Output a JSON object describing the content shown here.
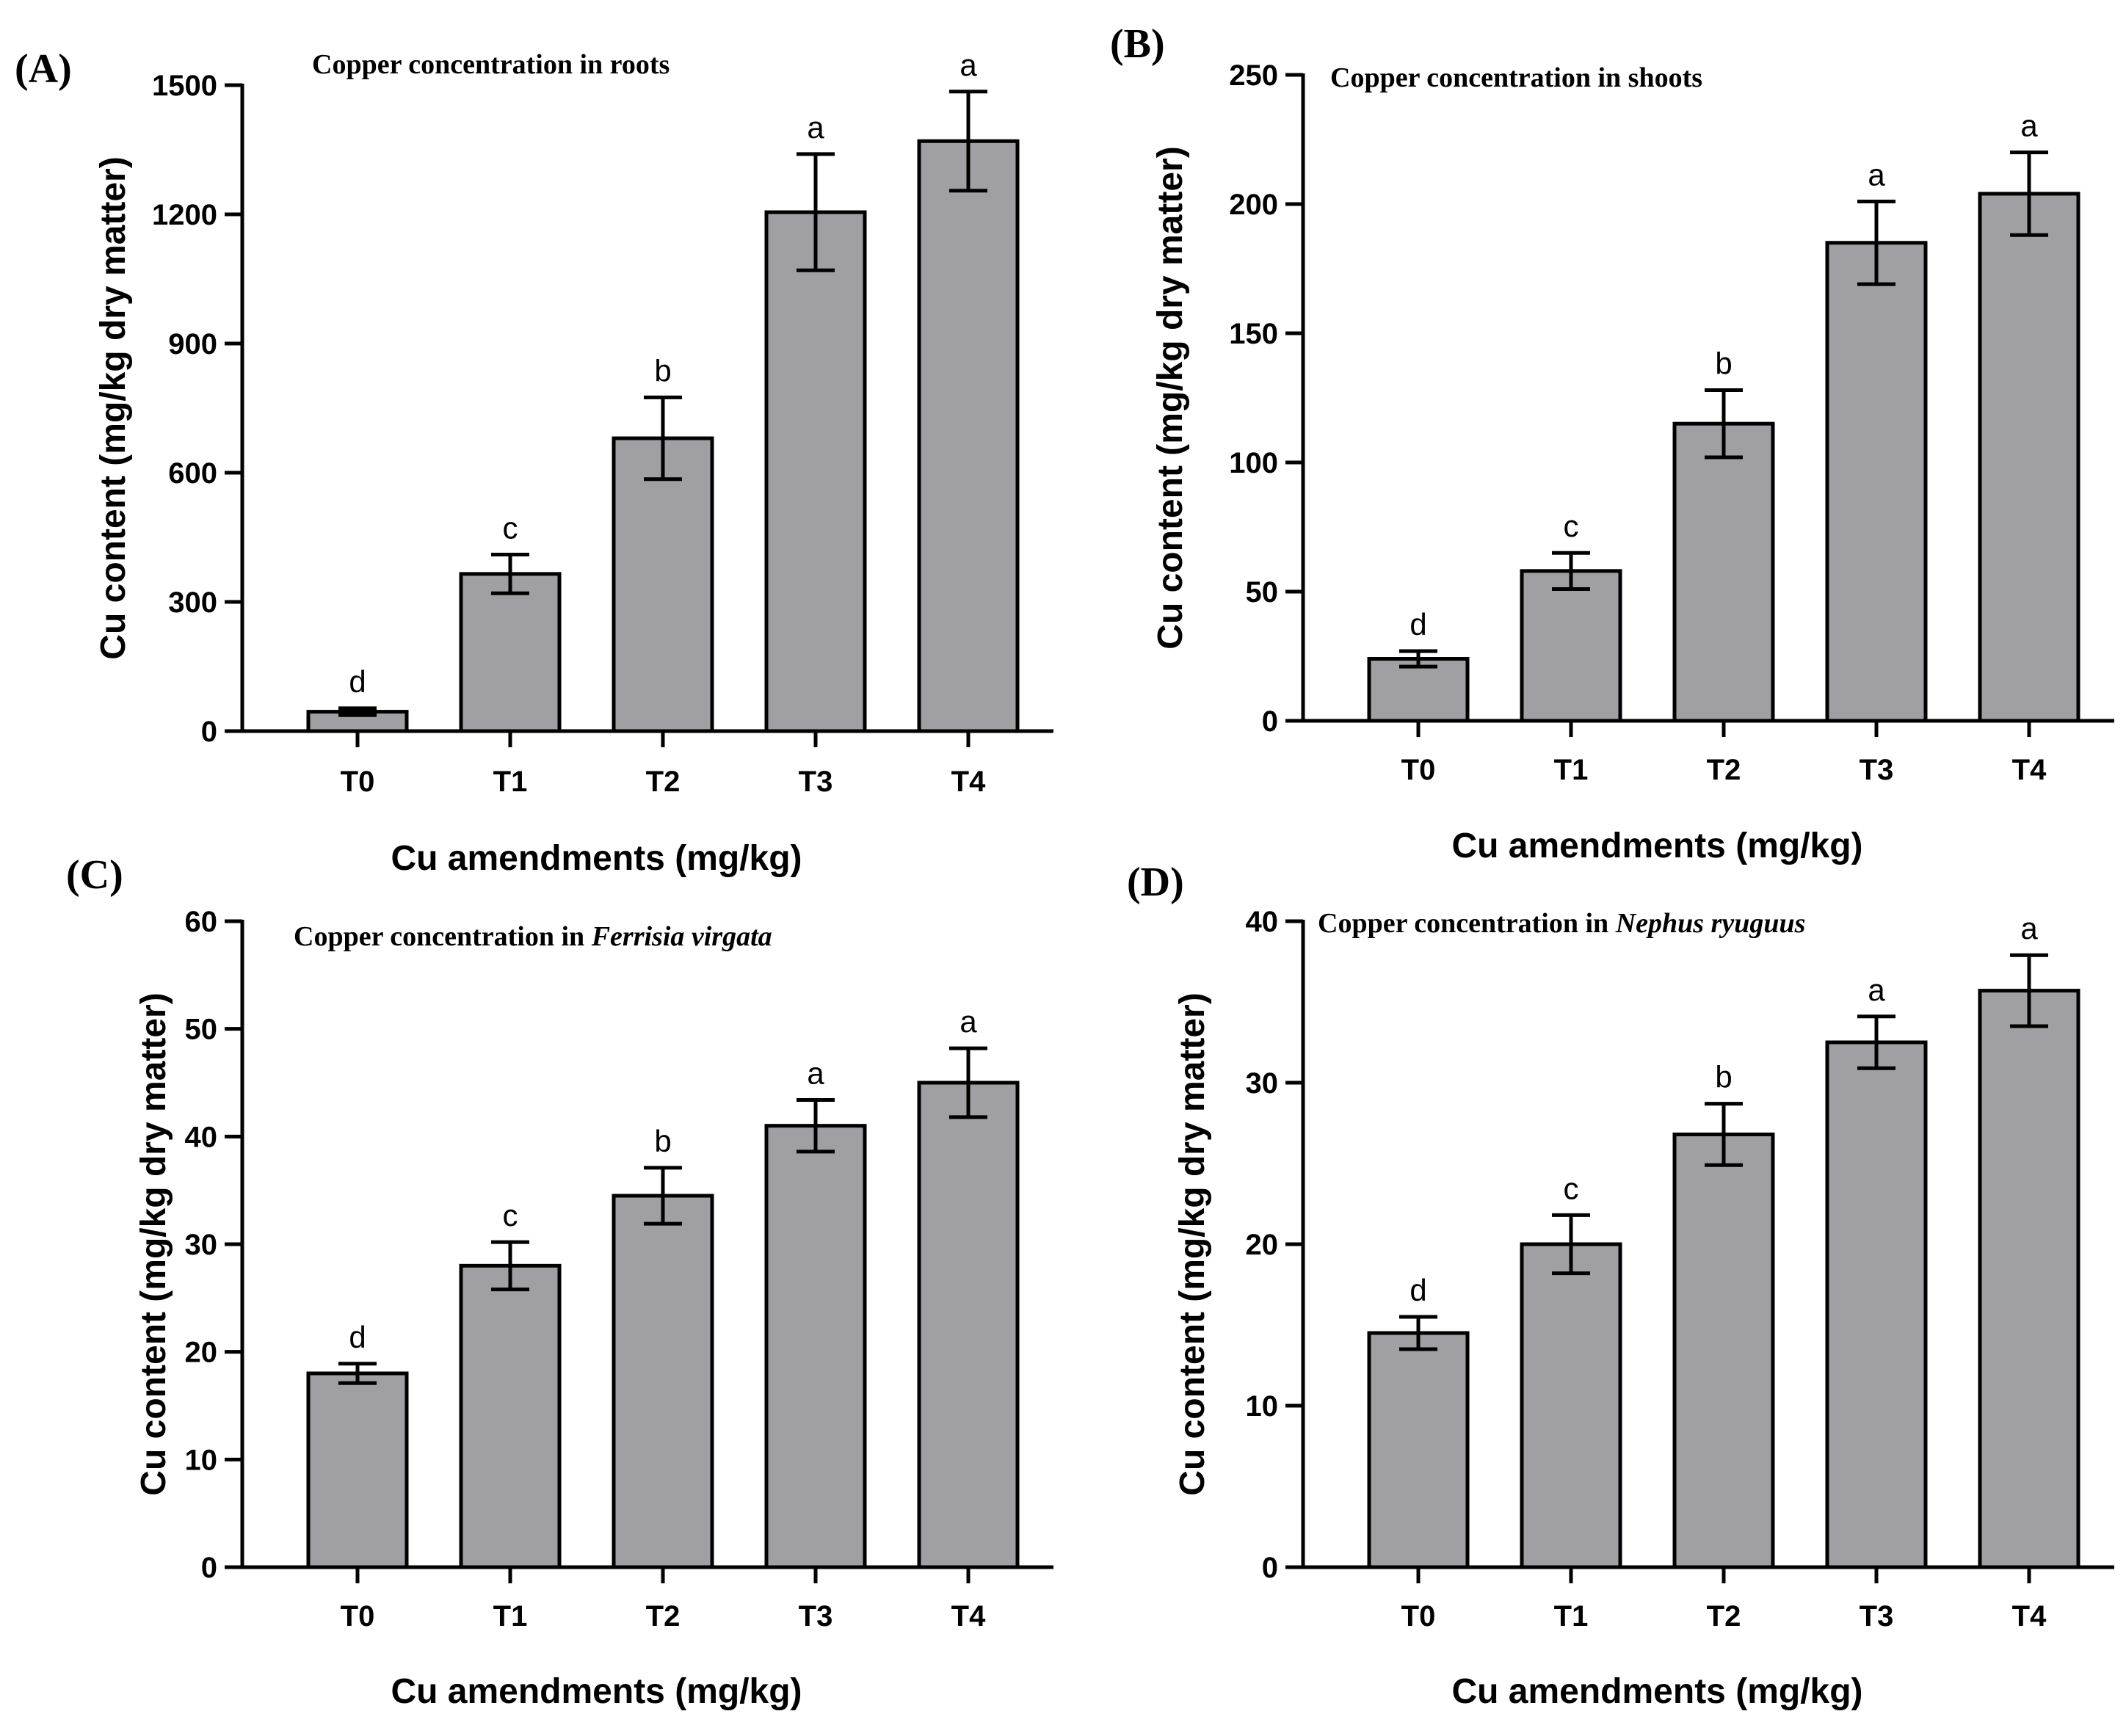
{
  "figure": {
    "colors": {
      "bar_fill": "#a0a0a4",
      "stroke": "#000000",
      "background": "#ffffff"
    }
  },
  "chart_data": [
    {
      "type": "bar",
      "panel": "(A)",
      "title_prefix": "Copper concentration in roots",
      "title_italic": "",
      "categories": [
        "T0",
        "T1",
        "T2",
        "T3",
        "T4"
      ],
      "values": [
        45,
        365,
        680,
        1205,
        1370
      ],
      "errors": [
        8,
        45,
        95,
        135,
        115
      ],
      "letters": [
        "d",
        "c",
        "b",
        "a",
        "a"
      ],
      "ylim": [
        0,
        1500
      ],
      "yticks": [
        0,
        300,
        600,
        900,
        1200,
        1500
      ],
      "xlabel": "Cu amendments (mg/kg)",
      "ylabel": "Cu content (mg/kg dry matter)"
    },
    {
      "type": "bar",
      "panel": "(B)",
      "title_prefix": "Copper concentration in shoots",
      "title_italic": "",
      "categories": [
        "T0",
        "T1",
        "T2",
        "T3",
        "T4"
      ],
      "values": [
        24,
        58,
        115,
        185,
        204
      ],
      "errors": [
        3,
        7,
        13,
        16,
        16
      ],
      "letters": [
        "d",
        "c",
        "b",
        "a",
        "a"
      ],
      "ylim": [
        0,
        250
      ],
      "yticks": [
        0,
        50,
        100,
        150,
        200,
        250
      ],
      "xlabel": "Cu amendments (mg/kg)",
      "ylabel": "Cu content (mg/kg dry matter)"
    },
    {
      "type": "bar",
      "panel": "(C)",
      "title_prefix": "Copper concentration in ",
      "title_italic": "Ferrisia virgata",
      "categories": [
        "T0",
        "T1",
        "T2",
        "T3",
        "T4"
      ],
      "values": [
        18,
        28,
        34.5,
        41,
        45
      ],
      "errors": [
        0.9,
        2.2,
        2.6,
        2.4,
        3.2
      ],
      "letters": [
        "d",
        "c",
        "b",
        "a",
        "a"
      ],
      "ylim": [
        0,
        60
      ],
      "yticks": [
        0,
        10,
        20,
        30,
        40,
        50,
        60
      ],
      "xlabel": "Cu amendments (mg/kg)",
      "ylabel": "Cu content (mg/kg dry matter)"
    },
    {
      "type": "bar",
      "panel": "(D)",
      "title_prefix": "Copper concentration in ",
      "title_italic": "Nephus ryuguus",
      "categories": [
        "T0",
        "T1",
        "T2",
        "T3",
        "T4"
      ],
      "values": [
        14.5,
        20,
        26.8,
        32.5,
        35.7
      ],
      "errors": [
        1.0,
        1.8,
        1.9,
        1.6,
        2.2
      ],
      "letters": [
        "d",
        "c",
        "b",
        "a",
        "a"
      ],
      "ylim": [
        0,
        40
      ],
      "yticks": [
        0,
        10,
        20,
        30,
        40
      ],
      "xlabel": "Cu amendments (mg/kg)",
      "ylabel": "Cu content (mg/kg dry matter)"
    }
  ]
}
